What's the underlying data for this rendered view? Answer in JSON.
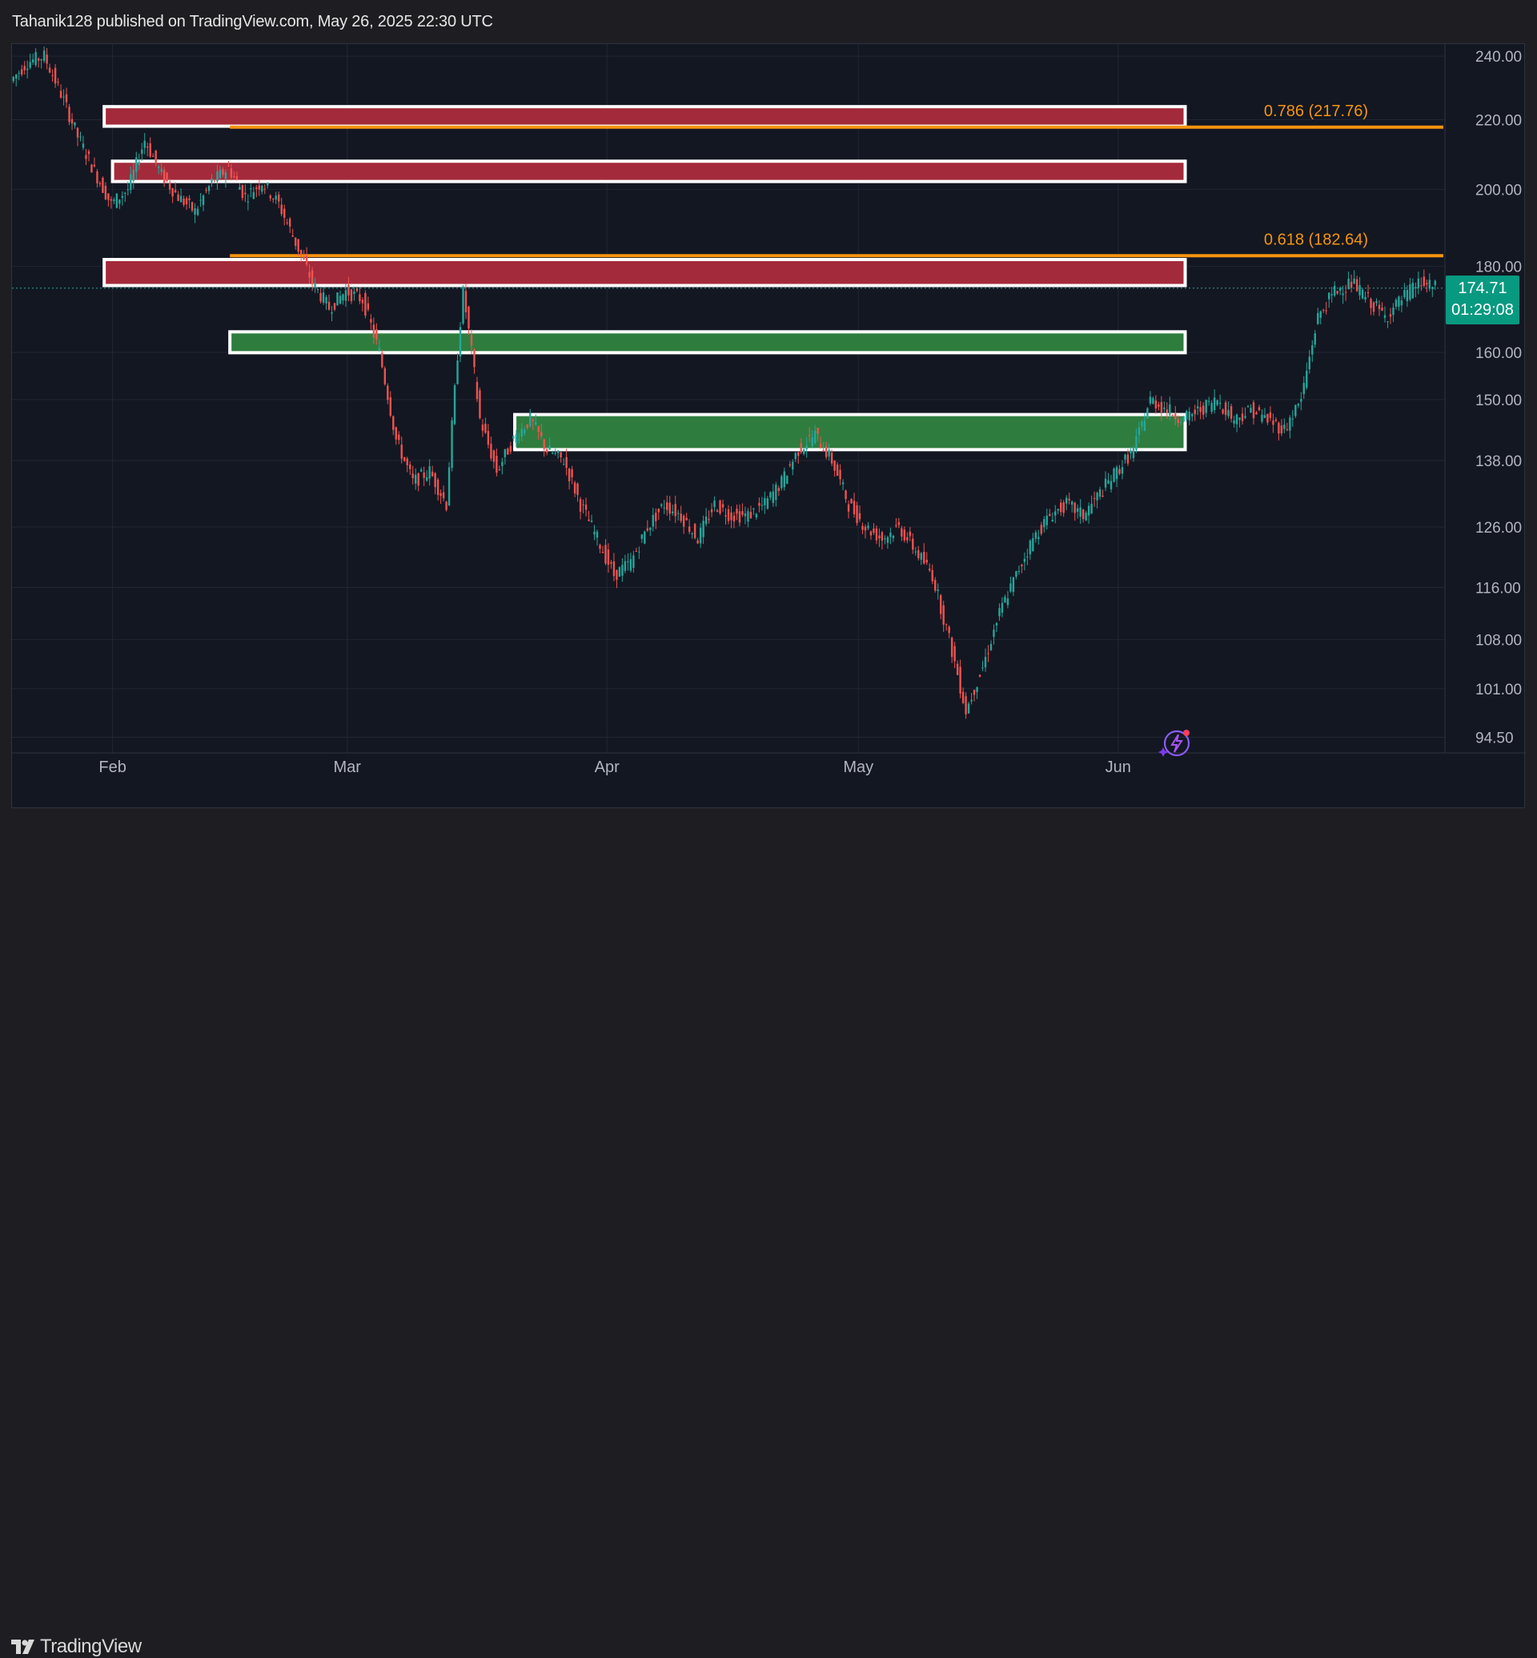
{
  "header": {
    "publisher_line": "Tahanik128 published on TradingView.com, May 26, 2025 22:30 UTC"
  },
  "footer": {
    "brand": "TradingView",
    "logo_icon": "tradingview-logo-icon"
  },
  "assistant_icon": "sparkle-lightning-icon",
  "price_badge": {
    "price": "174.71",
    "countdown": "01:29:08",
    "color": "#089981"
  },
  "colors": {
    "background": "#131722",
    "grid": "#232734",
    "resistance_zone": "#a32a3a",
    "support_zone": "#2e7d3e",
    "zone_border": "#ffffff",
    "fib_line": "#f5940f",
    "candle_up": "#26a69a",
    "candle_down": "#ef5350",
    "axis_text": "#b2b5be"
  },
  "chart_data": {
    "type": "candlestick",
    "symbol_price_last": 174.71,
    "y_scale": "log",
    "ylim": [
      92.5,
      244
    ],
    "y_ticks": [
      "240.00",
      "220.00",
      "200.00",
      "180.00",
      "160.00",
      "150.00",
      "138.00",
      "126.00",
      "116.00",
      "108.00",
      "101.00",
      "94.50"
    ],
    "y_tick_values": [
      240,
      220,
      200,
      180,
      160,
      150,
      138,
      126,
      116,
      108,
      101,
      94.5
    ],
    "x_ticks": [
      "Feb",
      "Mar",
      "Apr",
      "May",
      "Jun"
    ],
    "x_tick_dates": [
      "2025-02-01",
      "2025-03-01",
      "2025-04-01",
      "2025-05-01",
      "2025-06-01"
    ],
    "xlim": [
      "2025-01-20",
      "2025-07-10"
    ],
    "grid": true,
    "price_path": [
      [
        "2025-01-20",
        232
      ],
      [
        "2025-01-22",
        238
      ],
      [
        "2025-01-24",
        240
      ],
      [
        "2025-01-26",
        228
      ],
      [
        "2025-01-28",
        215
      ],
      [
        "2025-01-30",
        205
      ],
      [
        "2025-02-01",
        196
      ],
      [
        "2025-02-03",
        200
      ],
      [
        "2025-02-05",
        214
      ],
      [
        "2025-02-07",
        204
      ],
      [
        "2025-02-09",
        198
      ],
      [
        "2025-02-11",
        194
      ],
      [
        "2025-02-13",
        202
      ],
      [
        "2025-02-15",
        206
      ],
      [
        "2025-02-17",
        198
      ],
      [
        "2025-02-19",
        202
      ],
      [
        "2025-02-21",
        196
      ],
      [
        "2025-02-23",
        186
      ],
      [
        "2025-02-25",
        176
      ],
      [
        "2025-02-27",
        170
      ],
      [
        "2025-03-01",
        174
      ],
      [
        "2025-03-03",
        172
      ],
      [
        "2025-03-05",
        160
      ],
      [
        "2025-03-07",
        142
      ],
      [
        "2025-03-09",
        134
      ],
      [
        "2025-03-11",
        136
      ],
      [
        "2025-03-13",
        130
      ],
      [
        "2025-03-15",
        174
      ],
      [
        "2025-03-17",
        146
      ],
      [
        "2025-03-19",
        136
      ],
      [
        "2025-03-21",
        142
      ],
      [
        "2025-03-23",
        146
      ],
      [
        "2025-03-25",
        140
      ],
      [
        "2025-03-27",
        138
      ],
      [
        "2025-03-29",
        130
      ],
      [
        "2025-03-31",
        124
      ],
      [
        "2025-04-02",
        118
      ],
      [
        "2025-04-04",
        120
      ],
      [
        "2025-04-06",
        126
      ],
      [
        "2025-04-08",
        130
      ],
      [
        "2025-04-10",
        128
      ],
      [
        "2025-04-12",
        124
      ],
      [
        "2025-04-14",
        130
      ],
      [
        "2025-04-16",
        128
      ],
      [
        "2025-04-18",
        128
      ],
      [
        "2025-04-20",
        130
      ],
      [
        "2025-04-22",
        134
      ],
      [
        "2025-04-24",
        140
      ],
      [
        "2025-04-26",
        143
      ],
      [
        "2025-04-28",
        138
      ],
      [
        "2025-04-30",
        130
      ],
      [
        "2025-05-02",
        126
      ],
      [
        "2025-05-04",
        124
      ],
      [
        "2025-05-06",
        126
      ],
      [
        "2025-05-08",
        122
      ],
      [
        "2025-05-10",
        118
      ],
      [
        "2025-05-12",
        108
      ],
      [
        "2025-05-14",
        98
      ],
      [
        "2025-05-16",
        104
      ],
      [
        "2025-05-18",
        112
      ],
      [
        "2025-05-20",
        118
      ],
      [
        "2025-05-22",
        124
      ],
      [
        "2025-05-24",
        128
      ],
      [
        "2025-05-26",
        130
      ],
      [
        "2025-05-28",
        128
      ],
      [
        "2025-05-30",
        132
      ],
      [
        "2025-06-01",
        136
      ],
      [
        "2025-06-03",
        140
      ],
      [
        "2025-06-05",
        150
      ],
      [
        "2025-06-07",
        148
      ],
      [
        "2025-06-09",
        146
      ],
      [
        "2025-06-11",
        148
      ],
      [
        "2025-06-13",
        150
      ],
      [
        "2025-06-15",
        146
      ],
      [
        "2025-06-17",
        148
      ],
      [
        "2025-06-19",
        146
      ],
      [
        "2025-06-21",
        144
      ],
      [
        "2025-06-23",
        150
      ],
      [
        "2025-06-25",
        168
      ],
      [
        "2025-06-27",
        174
      ],
      [
        "2025-06-29",
        176
      ],
      [
        "2025-07-01",
        172
      ],
      [
        "2025-07-03",
        168
      ],
      [
        "2025-07-05",
        172
      ],
      [
        "2025-07-07",
        176
      ],
      [
        "2025-07-09",
        174.71
      ]
    ],
    "zones": [
      {
        "kind": "resistance",
        "low": 219.5,
        "high": 222.5,
        "start": "2025-01-31",
        "end": "2025-06-09"
      },
      {
        "kind": "resistance",
        "low": 203.5,
        "high": 206.5,
        "start": "2025-02-01",
        "end": "2025-06-09"
      },
      {
        "kind": "resistance",
        "low": 176.5,
        "high": 180.5,
        "start": "2025-01-31",
        "end": "2025-06-09"
      },
      {
        "kind": "support",
        "low": 161.0,
        "high": 163.5,
        "start": "2025-02-15",
        "end": "2025-06-09"
      },
      {
        "kind": "support",
        "low": 141.0,
        "high": 146.0,
        "start": "2025-03-21",
        "end": "2025-06-09"
      }
    ],
    "fib_levels": [
      {
        "ratio": "0.786",
        "value": 217.76,
        "label": "0.786 (217.76)",
        "start": "2025-02-15"
      },
      {
        "ratio": "0.618",
        "value": 182.64,
        "label": "0.618 (182.64)",
        "start": "2025-02-15"
      }
    ],
    "last_price_line": 174.71
  }
}
